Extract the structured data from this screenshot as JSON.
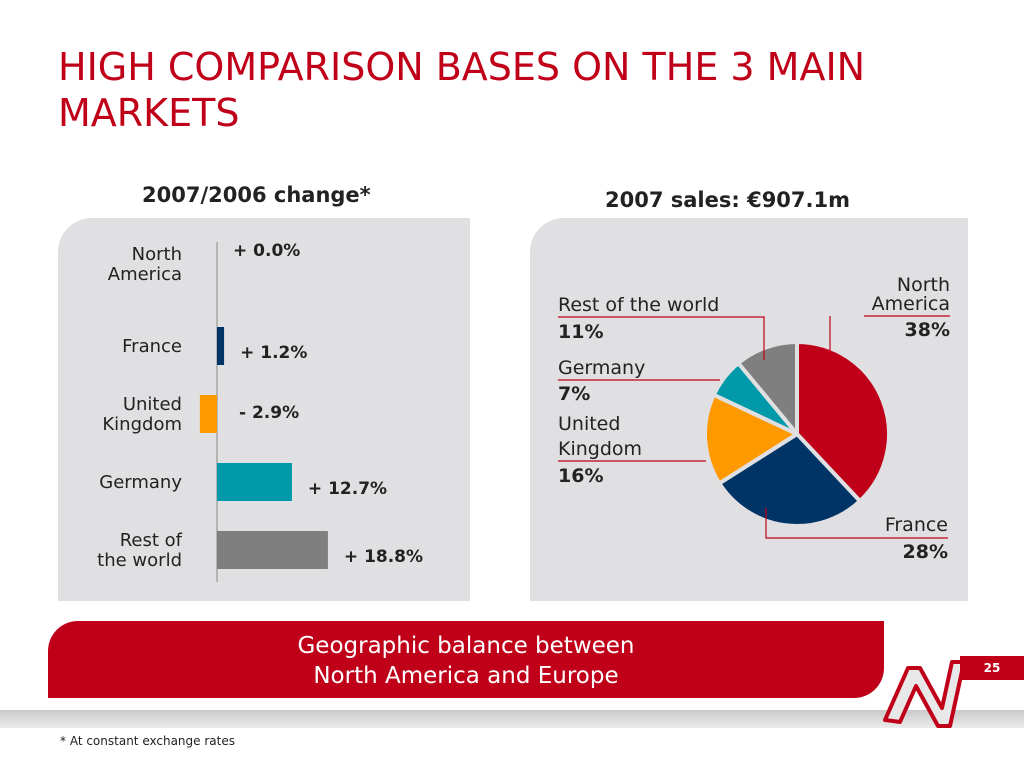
{
  "slide": {
    "title_lines": [
      "HIGH COMPARISON BASES ON THE 3 MAIN",
      "MARKETS"
    ],
    "banner_lines": [
      "Geographic balance between",
      "North America and Europe"
    ],
    "page_number": "25",
    "footnote": "* At constant exchange rates"
  },
  "chart_data": [
    {
      "type": "bar",
      "orientation": "horizontal",
      "title": "2007/2006 change*",
      "categories": [
        {
          "lines": [
            "North",
            "America"
          ]
        },
        {
          "lines": [
            "France"
          ]
        },
        {
          "lines": [
            "United",
            "Kingdom"
          ]
        },
        {
          "lines": [
            "Germany"
          ]
        },
        {
          "lines": [
            "Rest of",
            "the world"
          ]
        }
      ],
      "values": [
        0.0,
        1.2,
        -2.9,
        12.7,
        18.8
      ],
      "value_labels": [
        "+ 0.0%",
        "+ 1.2%",
        "- 2.9%",
        "+ 12.7%",
        "+ 18.8%"
      ],
      "colors": [
        "#003366",
        "#003366",
        "#ff9900",
        "#0099aa",
        "#7f7f7f"
      ],
      "units": "%",
      "grid": false,
      "legend": false
    },
    {
      "type": "pie",
      "title": "2007 sales: €907.1m",
      "slices": [
        {
          "lines": [
            "North",
            "America"
          ],
          "value": 38,
          "label": "38%",
          "color": "#c00018"
        },
        {
          "lines": [
            "France"
          ],
          "value": 28,
          "label": "28%",
          "color": "#003366"
        },
        {
          "lines": [
            "United",
            "Kingdom"
          ],
          "value": 16,
          "label": "16%",
          "color": "#ff9900"
        },
        {
          "lines": [
            "Germany"
          ],
          "value": 7,
          "label": "7%",
          "color": "#0099aa"
        },
        {
          "lines": [
            "Rest of the world"
          ],
          "value": 11,
          "label": "11%",
          "color": "#7f7f7f"
        }
      ],
      "grid": false,
      "legend": false
    }
  ]
}
